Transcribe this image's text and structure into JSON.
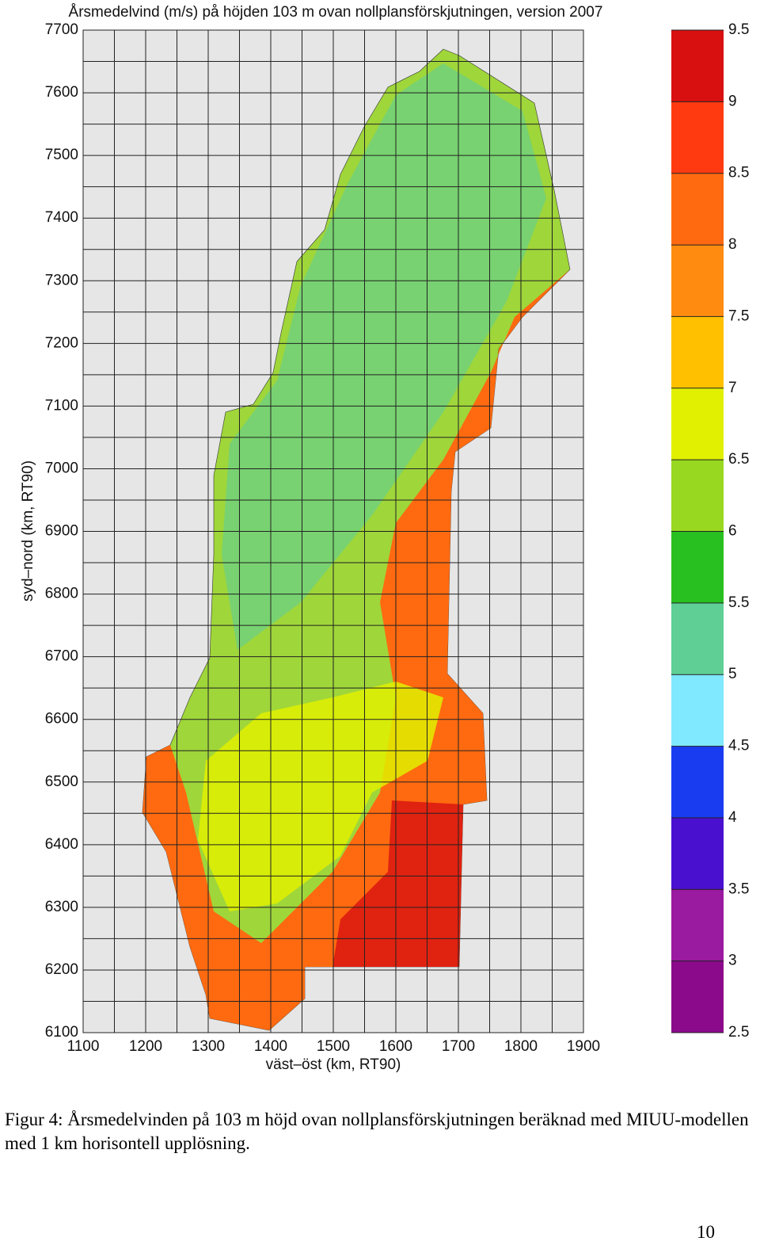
{
  "chart_data": {
    "type": "map",
    "title": "Årsmedelvind (m/s) på höjden 103 m ovan nollplansförskjutningen, version 2007",
    "x_label": "väst–öst (km, RT90)",
    "y_label": "syd–nord (km, RT90)",
    "xlim": [
      1100,
      1900
    ],
    "ylim": [
      6100,
      7700
    ],
    "xticks": [
      1100,
      1200,
      1300,
      1400,
      1500,
      1600,
      1700,
      1800,
      1900
    ],
    "yticks": [
      6100,
      6200,
      6300,
      6400,
      6500,
      6600,
      6700,
      6800,
      6900,
      7000,
      7100,
      7200,
      7300,
      7400,
      7500,
      7600,
      7700
    ],
    "grid_x": [
      1100,
      1150,
      1200,
      1250,
      1300,
      1350,
      1400,
      1450,
      1500,
      1550,
      1600,
      1650,
      1700,
      1750,
      1800,
      1850,
      1900
    ],
    "grid_y": [
      6100,
      6150,
      6200,
      6250,
      6300,
      6350,
      6400,
      6450,
      6500,
      6550,
      6600,
      6650,
      6700,
      6750,
      6800,
      6850,
      6900,
      6950,
      7000,
      7050,
      7100,
      7150,
      7200,
      7250,
      7300,
      7350,
      7400,
      7450,
      7500,
      7550,
      7600,
      7650,
      7700
    ],
    "grid_color": "#222",
    "colorbar": {
      "lim": [
        2.5,
        9.5
      ],
      "ticks": [
        2.5,
        3,
        3.5,
        4,
        4.5,
        5,
        5.5,
        6,
        6.5,
        7,
        7.5,
        8,
        8.5,
        9,
        9.5
      ],
      "colors": [
        "#8b0a8b",
        "#9a1aa0",
        "#4a10d0",
        "#1a3cf0",
        "#80e8ff",
        "#5fcf96",
        "#28c020",
        "#98d820",
        "#e0f000",
        "#ffc000",
        "#ff8c10",
        "#ff6a10",
        "#ff3a10",
        "#d81010"
      ]
    }
  },
  "caption": "Figur 4: Årsmedelvinden på 103 m höjd ovan nollplansförskjutningen beräknad med MIUU-modellen med 1 km horisontell upplösning.",
  "page_number": "10"
}
